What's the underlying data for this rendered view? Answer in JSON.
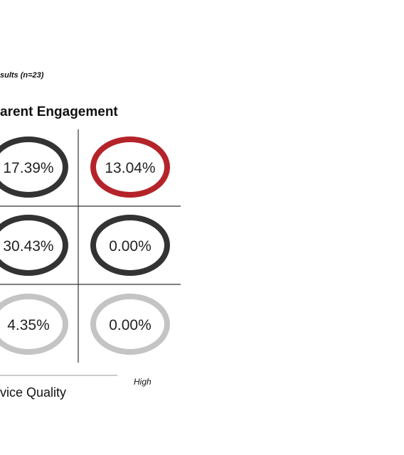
{
  "chart_data": {
    "type": "matrix",
    "subtitle": "sults (n=23)",
    "title": "arent Engagement",
    "xlabel": "vice Quality",
    "x_high_label": "High",
    "cells": [
      {
        "row": 1,
        "col": 1,
        "value": 17.39,
        "label": "17.39%",
        "color": "#333333"
      },
      {
        "row": 1,
        "col": 2,
        "value": 13.04,
        "label": "13.04%",
        "color": "#b5232a"
      },
      {
        "row": 2,
        "col": 1,
        "value": 30.43,
        "label": "30.43%",
        "color": "#333333"
      },
      {
        "row": 2,
        "col": 2,
        "value": 0.0,
        "label": "0.00%",
        "color": "#333333"
      },
      {
        "row": 3,
        "col": 1,
        "value": 4.35,
        "label": "4.35%",
        "color": "#c4c4c4"
      },
      {
        "row": 3,
        "col": 2,
        "value": 0.0,
        "label": "0.00%",
        "color": "#c4c4c4"
      }
    ]
  }
}
